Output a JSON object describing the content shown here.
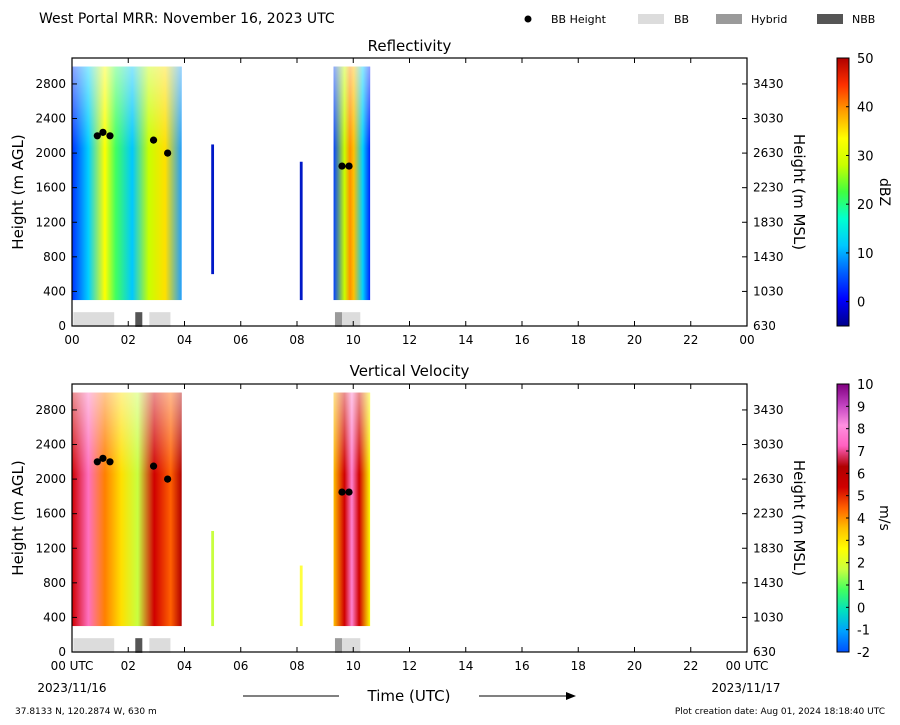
{
  "header": {
    "title": "West Portal MRR:  November 16, 2023 UTC",
    "legend": [
      {
        "label": "BB Height",
        "kind": "dot",
        "color": "#000000"
      },
      {
        "label": "BB",
        "kind": "box",
        "color": "#dcdcdc"
      },
      {
        "label": "Hybrid",
        "kind": "box",
        "color": "#9a9a9a"
      },
      {
        "label": "NBB",
        "kind": "box",
        "color": "#555555"
      }
    ]
  },
  "footer": {
    "coords": "37.8133 N, 120.2874 W, 630 m",
    "created": "Plot creation date: Aug 01, 2024 18:18:40 UTC",
    "xlabel": "Time (UTC)",
    "start_label": "00 UTC",
    "start_date": "2023/11/16",
    "end_label": "00 UTC",
    "end_date": "2023/11/17"
  },
  "chart_data": [
    {
      "type": "heatmap",
      "title": "Reflectivity",
      "ylabel": "Height (m AGL)",
      "ylabel_right": "Height (m MSL)",
      "xlim": [
        0,
        24
      ],
      "ylim": [
        0,
        3100
      ],
      "x_ticks": [
        "00",
        "02",
        "04",
        "06",
        "08",
        "10",
        "12",
        "14",
        "16",
        "18",
        "20",
        "22",
        "00"
      ],
      "y_ticks": [
        0,
        400,
        800,
        1200,
        1600,
        2000,
        2400,
        2800
      ],
      "y_ticks_right": [
        "630",
        "1030",
        "1430",
        "1830",
        "2230",
        "2630",
        "3030",
        "3430"
      ],
      "colorbar": {
        "label": "dBZ",
        "range": [
          -5,
          50
        ],
        "ticks": [
          "0",
          "10",
          "20",
          "30",
          "40",
          "50"
        ],
        "tick_values": [
          0,
          10,
          20,
          30,
          40,
          50
        ],
        "colors": [
          "#00008b",
          "#0000ff",
          "#0060ff",
          "#00c8ff",
          "#00ffd0",
          "#40ff40",
          "#c8ff00",
          "#ffff00",
          "#ffa000",
          "#ff3000",
          "#b00000"
        ]
      },
      "data_segments": [
        {
          "x_start": 0.0,
          "x_end": 3.9,
          "y_top": 3000,
          "y_bottom": 300
        },
        {
          "x_start": 4.95,
          "x_end": 5.05,
          "y_top": 2100,
          "y_bottom": 600
        },
        {
          "x_start": 8.1,
          "x_end": 8.2,
          "y_top": 1900,
          "y_bottom": 300
        },
        {
          "x_start": 9.3,
          "x_end": 10.6,
          "y_top": 3000,
          "y_bottom": 300
        }
      ],
      "bb_height_points": [
        {
          "x": 0.9,
          "y": 2200
        },
        {
          "x": 1.1,
          "y": 2240
        },
        {
          "x": 1.35,
          "y": 2200
        },
        {
          "x": 2.9,
          "y": 2150
        },
        {
          "x": 3.4,
          "y": 2000
        },
        {
          "x": 9.6,
          "y": 1850
        },
        {
          "x": 9.85,
          "y": 1850
        }
      ],
      "bb_bars": [
        {
          "x_start": 0.05,
          "x_end": 1.5,
          "type": "BB"
        },
        {
          "x_start": 2.25,
          "x_end": 2.5,
          "type": "NBB"
        },
        {
          "x_start": 2.75,
          "x_end": 3.5,
          "type": "BB"
        },
        {
          "x_start": 9.35,
          "x_end": 9.6,
          "type": "Hybrid"
        },
        {
          "x_start": 9.6,
          "x_end": 10.25,
          "type": "BB"
        }
      ]
    },
    {
      "type": "heatmap",
      "title": "Vertical Velocity",
      "ylabel": "Height (m AGL)",
      "ylabel_right": "Height (m MSL)",
      "xlim": [
        0,
        24
      ],
      "ylim": [
        0,
        3100
      ],
      "x_ticks": [
        "00 UTC",
        "02",
        "04",
        "06",
        "08",
        "10",
        "12",
        "14",
        "16",
        "18",
        "20",
        "22",
        "00 UTC"
      ],
      "y_ticks": [
        0,
        400,
        800,
        1200,
        1600,
        2000,
        2400,
        2800
      ],
      "y_ticks_right": [
        "630",
        "1030",
        "1430",
        "1830",
        "2230",
        "2630",
        "3030",
        "3430"
      ],
      "colorbar": {
        "label": "m/s",
        "range": [
          -2,
          10
        ],
        "ticks": [
          "-2",
          "-1",
          "0",
          "1",
          "2",
          "3",
          "4",
          "5",
          "6",
          "7",
          "8",
          "9",
          "10"
        ],
        "tick_values": [
          -2,
          -1,
          0,
          1,
          2,
          3,
          4,
          5,
          6,
          7,
          8,
          9,
          10
        ],
        "colors": [
          "#0050ff",
          "#00a0ff",
          "#00e0c0",
          "#40ff60",
          "#c8ff40",
          "#ffff00",
          "#ffc000",
          "#ff6000",
          "#d00000",
          "#b00000",
          "#ff60c0",
          "#ff90e0",
          "#c040c0",
          "#800080"
        ]
      },
      "data_segments": [
        {
          "x_start": 0.0,
          "x_end": 3.9,
          "y_top": 3000,
          "y_bottom": 300
        },
        {
          "x_start": 4.95,
          "x_end": 5.05,
          "y_top": 1400,
          "y_bottom": 300
        },
        {
          "x_start": 8.1,
          "x_end": 8.2,
          "y_top": 1000,
          "y_bottom": 300
        },
        {
          "x_start": 9.3,
          "x_end": 10.6,
          "y_top": 3000,
          "y_bottom": 300
        }
      ],
      "bb_height_points": [
        {
          "x": 0.9,
          "y": 2200
        },
        {
          "x": 1.1,
          "y": 2240
        },
        {
          "x": 1.35,
          "y": 2200
        },
        {
          "x": 2.9,
          "y": 2150
        },
        {
          "x": 3.4,
          "y": 2000
        },
        {
          "x": 9.6,
          "y": 1850
        },
        {
          "x": 9.85,
          "y": 1850
        }
      ],
      "bb_bars": [
        {
          "x_start": 0.05,
          "x_end": 1.5,
          "type": "BB"
        },
        {
          "x_start": 2.25,
          "x_end": 2.5,
          "type": "NBB"
        },
        {
          "x_start": 2.75,
          "x_end": 3.5,
          "type": "BB"
        },
        {
          "x_start": 9.35,
          "x_end": 9.6,
          "type": "Hybrid"
        },
        {
          "x_start": 9.6,
          "x_end": 10.25,
          "type": "BB"
        }
      ]
    }
  ]
}
